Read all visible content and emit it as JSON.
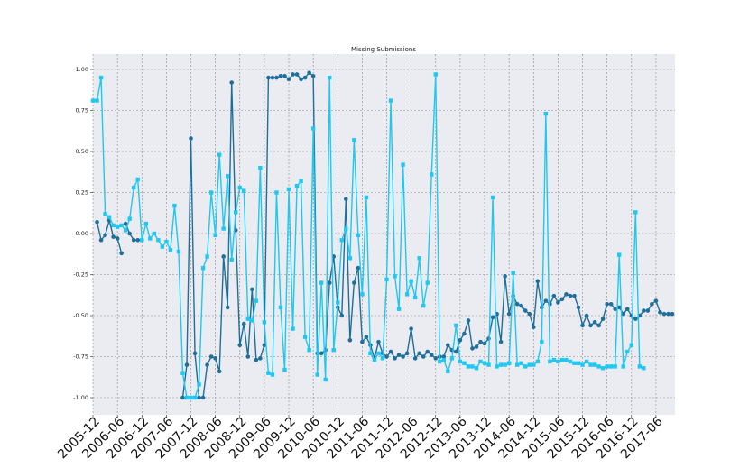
{
  "chart_data": {
    "type": "line",
    "title": "Missing Submissions",
    "xlabel": "",
    "ylabel": "",
    "ylim": [
      -1.1,
      1.1
    ],
    "xlim": [
      0,
      140
    ],
    "y_ticks": [
      "1.00",
      "0.75",
      "0.50",
      "0.25",
      "0.00",
      "-0.25",
      "-0.50",
      "-0.75",
      "-1.00"
    ],
    "y_tick_values": [
      1.0,
      0.75,
      0.5,
      0.25,
      0.0,
      -0.25,
      -0.5,
      -0.75,
      -1.0
    ],
    "x_ticks": [
      "2005-12",
      "2006-06",
      "2006-12",
      "2007-06",
      "2007-12",
      "2008-06",
      "2008-12",
      "2009-06",
      "2009-12",
      "2010-06",
      "2010-12",
      "2011-06",
      "2011-12",
      "2012-06",
      "2012-12",
      "2013-06",
      "2013-12",
      "2014-06",
      "2014-12",
      "2015-06",
      "2015-12",
      "2016-06",
      "2016-12",
      "2017-06"
    ],
    "x_tick_positions": [
      0,
      6,
      12,
      18,
      24,
      30,
      36,
      42,
      48,
      54,
      60,
      66,
      72,
      78,
      84,
      90,
      96,
      102,
      108,
      114,
      120,
      126,
      132,
      138
    ],
    "grid": true,
    "legend": "none",
    "colors": {
      "dark": "#1f6f99",
      "light": "#1ec8f0",
      "background": "#ebebf2",
      "grid": "#8a8a8a"
    },
    "series": [
      {
        "color": "#1f6f99",
        "marker": "circle",
        "segments": [
          [
            [
              1,
              0.07
            ],
            [
              2,
              -0.04
            ],
            [
              3,
              -0.01
            ],
            [
              4,
              0.08
            ],
            [
              5,
              -0.02
            ],
            [
              6,
              -0.03
            ],
            [
              7,
              -0.12
            ]
          ],
          [
            [
              8,
              0.06
            ],
            [
              9,
              0.0
            ],
            [
              10,
              -0.04
            ],
            [
              11,
              -0.04
            ],
            [
              12,
              -0.04
            ]
          ],
          [
            [
              22,
              -1.0
            ],
            [
              23,
              -0.8
            ],
            [
              24,
              0.58
            ],
            [
              25,
              -0.73
            ],
            [
              26,
              -1.0
            ],
            [
              27,
              -1.0
            ],
            [
              28,
              -0.8
            ],
            [
              29,
              -0.75
            ],
            [
              30,
              -0.76
            ],
            [
              31,
              -0.84
            ],
            [
              32,
              -0.14
            ],
            [
              33,
              -0.45
            ],
            [
              34,
              0.92
            ],
            [
              35,
              0.02
            ],
            [
              36,
              -0.68
            ],
            [
              37,
              -0.55
            ],
            [
              38,
              -0.75
            ],
            [
              39,
              -0.34
            ],
            [
              40,
              -0.77
            ],
            [
              41,
              -0.76
            ],
            [
              42,
              -0.68
            ],
            [
              43,
              0.95
            ],
            [
              44,
              0.95
            ],
            [
              45,
              0.95
            ],
            [
              46,
              0.96
            ],
            [
              47,
              0.96
            ],
            [
              48,
              0.94
            ],
            [
              49,
              0.97
            ],
            [
              50,
              0.97
            ],
            [
              51,
              0.94
            ],
            [
              52,
              0.95
            ],
            [
              53,
              0.98
            ],
            [
              54,
              0.96
            ],
            [
              55,
              -0.73
            ],
            [
              56,
              -0.73
            ],
            [
              57,
              -0.71
            ],
            [
              58,
              -0.3
            ],
            [
              59,
              -0.14
            ],
            [
              60,
              -0.45
            ],
            [
              61,
              -0.5
            ],
            [
              62,
              0.21
            ],
            [
              63,
              -0.65
            ],
            [
              64,
              -0.3
            ],
            [
              65,
              -0.21
            ],
            [
              66,
              -0.66
            ],
            [
              67,
              -0.63
            ],
            [
              68,
              -0.68
            ],
            [
              69,
              -0.76
            ],
            [
              70,
              -0.66
            ],
            [
              71,
              -0.73
            ],
            [
              72,
              -0.75
            ],
            [
              73,
              -0.72
            ],
            [
              74,
              -0.76
            ],
            [
              75,
              -0.74
            ],
            [
              76,
              -0.75
            ],
            [
              77,
              -0.73
            ],
            [
              78,
              -0.58
            ],
            [
              79,
              -0.76
            ],
            [
              80,
              -0.73
            ],
            [
              81,
              -0.75
            ],
            [
              82,
              -0.72
            ],
            [
              83,
              -0.74
            ],
            [
              84,
              -0.76
            ],
            [
              85,
              -0.75
            ],
            [
              86,
              -0.75
            ],
            [
              87,
              -0.68
            ],
            [
              88,
              -0.71
            ],
            [
              89,
              -0.72
            ],
            [
              90,
              -0.65
            ],
            [
              91,
              -0.61
            ],
            [
              92,
              -0.53
            ],
            [
              93,
              -0.7
            ],
            [
              94,
              -0.69
            ],
            [
              95,
              -0.66
            ],
            [
              96,
              -0.67
            ],
            [
              97,
              -0.64
            ],
            [
              98,
              -0.51
            ],
            [
              99,
              -0.49
            ],
            [
              100,
              -0.66
            ],
            [
              101,
              -0.26
            ],
            [
              102,
              -0.49
            ],
            [
              103,
              -0.38
            ],
            [
              104,
              -0.43
            ],
            [
              105,
              -0.44
            ],
            [
              106,
              -0.47
            ],
            [
              107,
              -0.49
            ],
            [
              108,
              -0.57
            ],
            [
              109,
              -0.29
            ],
            [
              110,
              -0.45
            ],
            [
              111,
              -0.41
            ],
            [
              112,
              -0.43
            ],
            [
              113,
              -0.38
            ],
            [
              114,
              -0.42
            ],
            [
              115,
              -0.4
            ],
            [
              116,
              -0.37
            ],
            [
              117,
              -0.38
            ],
            [
              118,
              -0.38
            ],
            [
              119,
              -0.45
            ],
            [
              120,
              -0.56
            ],
            [
              121,
              -0.5
            ],
            [
              122,
              -0.56
            ],
            [
              123,
              -0.54
            ],
            [
              124,
              -0.56
            ],
            [
              125,
              -0.52
            ],
            [
              126,
              -0.43
            ],
            [
              127,
              -0.43
            ],
            [
              128,
              -0.46
            ],
            [
              129,
              -0.45
            ],
            [
              130,
              -0.49
            ],
            [
              131,
              -0.46
            ],
            [
              132,
              -0.5
            ],
            [
              133,
              -0.52
            ],
            [
              134,
              -0.5
            ],
            [
              135,
              -0.47
            ],
            [
              136,
              -0.47
            ],
            [
              137,
              -0.43
            ],
            [
              138,
              -0.41
            ],
            [
              139,
              -0.48
            ],
            [
              140,
              -0.49
            ],
            [
              141,
              -0.49
            ],
            [
              142,
              -0.49
            ]
          ]
        ]
      },
      {
        "color": "#1ec8f0",
        "marker": "square",
        "segments": [
          [
            [
              0,
              0.81
            ],
            [
              1,
              0.81
            ],
            [
              2,
              0.95
            ],
            [
              3,
              0.12
            ],
            [
              4,
              0.1
            ],
            [
              5,
              0.05
            ],
            [
              6,
              0.04
            ],
            [
              7,
              0.05
            ],
            [
              8,
              0.02
            ],
            [
              9,
              0.09
            ],
            [
              10,
              0.28
            ],
            [
              11,
              0.33
            ],
            [
              12,
              -0.04
            ],
            [
              13,
              0.06
            ],
            [
              14,
              -0.03
            ],
            [
              15,
              0.0
            ],
            [
              16,
              -0.04
            ],
            [
              17,
              -0.08
            ],
            [
              18,
              -0.05
            ],
            [
              19,
              -0.1
            ],
            [
              20,
              0.17
            ],
            [
              21,
              -0.11
            ],
            [
              22,
              -0.85
            ],
            [
              23,
              -1.0
            ],
            [
              24,
              -1.0
            ],
            [
              25,
              -1.0
            ],
            [
              26,
              -0.92
            ],
            [
              27,
              -0.21
            ],
            [
              28,
              -0.14
            ],
            [
              29,
              0.25
            ],
            [
              30,
              -0.01
            ],
            [
              31,
              0.48
            ],
            [
              32,
              0.03
            ],
            [
              33,
              0.35
            ],
            [
              34,
              -0.16
            ],
            [
              35,
              0.13
            ],
            [
              36,
              0.28
            ],
            [
              37,
              0.26
            ],
            [
              38,
              -0.52
            ],
            [
              39,
              -0.53
            ],
            [
              40,
              -0.41
            ],
            [
              41,
              0.4
            ],
            [
              42,
              -0.54
            ],
            [
              43,
              -0.85
            ],
            [
              44,
              -0.86
            ],
            [
              45,
              0.25
            ],
            [
              46,
              -0.45
            ],
            [
              47,
              -0.83
            ],
            [
              48,
              0.27
            ],
            [
              49,
              -0.58
            ],
            [
              50,
              0.29
            ],
            [
              51,
              0.32
            ],
            [
              52,
              -0.63
            ],
            [
              53,
              -0.71
            ],
            [
              54,
              0.64
            ],
            [
              55,
              -0.86
            ],
            [
              56,
              -0.3
            ],
            [
              57,
              -0.89
            ],
            [
              58,
              0.95
            ],
            [
              59,
              -0.71
            ],
            [
              60,
              -0.42
            ],
            [
              61,
              -0.04
            ],
            [
              62,
              0.03
            ],
            [
              63,
              -0.15
            ],
            [
              64,
              0.57
            ],
            [
              65,
              -0.01
            ],
            [
              66,
              -0.37
            ],
            [
              67,
              0.22
            ],
            [
              68,
              -0.73
            ],
            [
              69,
              -0.77
            ],
            [
              70,
              -0.73
            ],
            [
              71,
              -0.76
            ],
            [
              72,
              -0.28
            ],
            [
              73,
              0.81
            ],
            [
              74,
              -0.26
            ],
            [
              75,
              -0.46
            ],
            [
              76,
              0.42
            ],
            [
              77,
              -0.37
            ],
            [
              78,
              -0.29
            ],
            [
              79,
              -0.39
            ],
            [
              80,
              -0.15
            ],
            [
              81,
              -0.44
            ],
            [
              82,
              -0.3
            ],
            [
              83,
              0.36
            ],
            [
              84,
              0.97
            ],
            [
              85,
              -0.78
            ],
            [
              86,
              -0.77
            ],
            [
              87,
              -0.84
            ],
            [
              88,
              -0.76
            ],
            [
              89,
              -0.56
            ],
            [
              90,
              -0.78
            ],
            [
              91,
              -0.79
            ],
            [
              92,
              -0.81
            ],
            [
              93,
              -0.81
            ],
            [
              94,
              -0.82
            ],
            [
              95,
              -0.78
            ],
            [
              96,
              -0.79
            ],
            [
              97,
              -0.8
            ],
            [
              98,
              0.22
            ],
            [
              99,
              -0.81
            ],
            [
              100,
              -0.8
            ],
            [
              101,
              -0.8
            ],
            [
              102,
              -0.79
            ],
            [
              103,
              -0.24
            ],
            [
              104,
              -0.8
            ],
            [
              105,
              -0.79
            ],
            [
              106,
              -0.81
            ],
            [
              107,
              -0.8
            ],
            [
              108,
              -0.8
            ],
            [
              109,
              -0.78
            ],
            [
              110,
              -0.66
            ],
            [
              111,
              0.73
            ],
            [
              112,
              -0.78
            ],
            [
              113,
              -0.77
            ],
            [
              114,
              -0.78
            ],
            [
              115,
              -0.77
            ],
            [
              116,
              -0.77
            ],
            [
              117,
              -0.78
            ],
            [
              118,
              -0.79
            ],
            [
              119,
              -0.79
            ],
            [
              120,
              -0.8
            ],
            [
              121,
              -0.78
            ],
            [
              122,
              -0.8
            ],
            [
              123,
              -0.8
            ],
            [
              124,
              -0.81
            ],
            [
              125,
              -0.82
            ],
            [
              126,
              -0.81
            ],
            [
              127,
              -0.81
            ],
            [
              128,
              -0.81
            ],
            [
              129,
              -0.13
            ],
            [
              130,
              -0.81
            ],
            [
              131,
              -0.72
            ],
            [
              132,
              -0.68
            ],
            [
              133,
              0.13
            ],
            [
              134,
              -0.81
            ],
            [
              135,
              -0.82
            ]
          ]
        ]
      }
    ]
  }
}
